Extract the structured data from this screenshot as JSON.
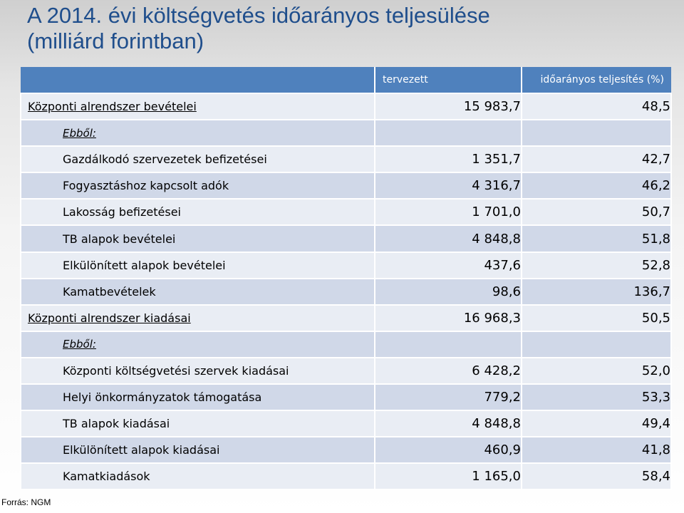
{
  "title": {
    "line1": "A 2014. évi költségvetés időarányos teljesülése",
    "line2": "(milliárd forintban)"
  },
  "table": {
    "headers": [
      "",
      "tervezett",
      "időarányos teljesítés (%)"
    ],
    "rows": [
      {
        "label": "Központi alrendszer bevételei",
        "planned": "15 983,7",
        "percent": "48,5",
        "kind": "main"
      },
      {
        "label": "Ebből:",
        "planned": "",
        "percent": "",
        "kind": "note"
      },
      {
        "label": "Gazdálkodó szervezetek befizetései",
        "planned": "1 351,7",
        "percent": "42,7",
        "kind": "sub"
      },
      {
        "label": "Fogyasztáshoz kapcsolt adók",
        "planned": "4 316,7",
        "percent": "46,2",
        "kind": "sub"
      },
      {
        "label": "Lakosság befizetései",
        "planned": "1 701,0",
        "percent": "50,7",
        "kind": "sub"
      },
      {
        "label": "TB alapok bevételei",
        "planned": "4 848,8",
        "percent": "51,8",
        "kind": "sub"
      },
      {
        "label": "Elkülönített alapok bevételei",
        "planned": "437,6",
        "percent": "52,8",
        "kind": "sub"
      },
      {
        "label": "Kamatbevételek",
        "planned": "98,6",
        "percent": "136,7",
        "kind": "sub"
      },
      {
        "label": "Központi alrendszer kiadásai",
        "planned": "16 968,3",
        "percent": "50,5",
        "kind": "main"
      },
      {
        "label": "Ebből:",
        "planned": "",
        "percent": "",
        "kind": "note"
      },
      {
        "label": "Központi költségvetési szervek kiadásai",
        "planned": "6 428,2",
        "percent": "52,0",
        "kind": "sub"
      },
      {
        "label": "Helyi önkormányzatok támogatása",
        "planned": "779,2",
        "percent": "53,3",
        "kind": "sub"
      },
      {
        "label": "TB alapok kiadásai",
        "planned": "4 848,8",
        "percent": "49,4",
        "kind": "sub"
      },
      {
        "label": "Elkülönített alapok kiadásai",
        "planned": "460,9",
        "percent": "41,8",
        "kind": "sub"
      },
      {
        "label": "Kamatkiadások",
        "planned": "1 165,0",
        "percent": "58,4",
        "kind": "sub"
      }
    ]
  },
  "source": "Forrás: NGM",
  "colors": {
    "title": "#1f4e8c",
    "header": "#4f81bd",
    "row_light": "#e9edf4",
    "row_dark": "#d0d8e8"
  }
}
